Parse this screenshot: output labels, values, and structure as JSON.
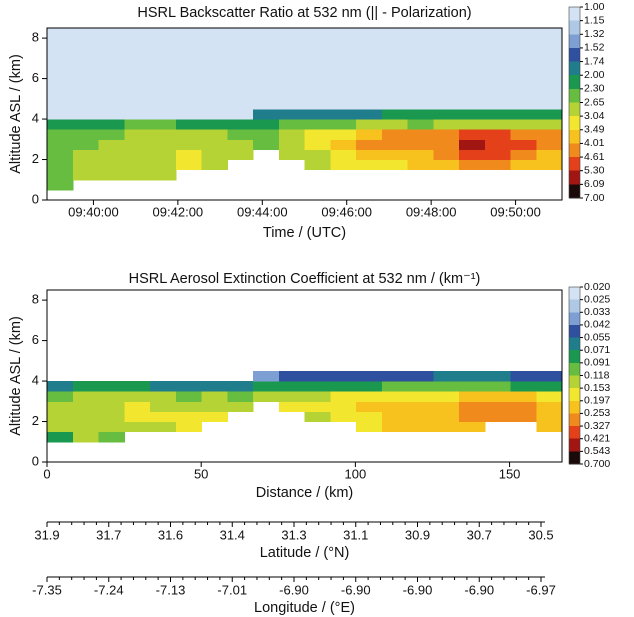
{
  "chart_data": [
    {
      "type": "heatmap",
      "title": "HSRL Backscatter Ratio at 532 nm (|| - Polarization)",
      "xlabel": "Time / (UTC)",
      "ylabel": "Altitude ASL / (km)",
      "xlim": [
        38.9,
        51.1
      ],
      "ylim": [
        0,
        8.5
      ],
      "xticks": [
        {
          "value": 40,
          "label": "09:40:00"
        },
        {
          "value": 42,
          "label": "09:42:00"
        },
        {
          "value": 44,
          "label": "09:44:00"
        },
        {
          "value": 46,
          "label": "09:46:00"
        },
        {
          "value": 48,
          "label": "09:48:00"
        },
        {
          "value": 50,
          "label": "09:50:00"
        }
      ],
      "yticks": [
        0,
        2,
        4,
        6,
        8
      ],
      "xbins": [
        38.9,
        39.51,
        40.12,
        40.73,
        41.34,
        41.95,
        42.56,
        43.17,
        43.78,
        44.39,
        45.0,
        45.61,
        46.22,
        46.83,
        47.44,
        48.05,
        48.66,
        49.27,
        49.88,
        50.49,
        51.1
      ],
      "ybins": [
        0,
        0.5,
        1,
        1.5,
        2,
        2.5,
        3,
        3.5,
        4,
        4.5,
        8.5
      ],
      "values": [
        [
          null,
          null,
          null,
          null,
          null,
          null,
          null,
          null,
          null,
          null,
          null,
          null,
          null,
          null,
          null,
          null,
          null,
          null,
          null,
          null
        ],
        [
          2.6,
          null,
          null,
          null,
          null,
          null,
          null,
          null,
          null,
          null,
          null,
          null,
          null,
          null,
          null,
          null,
          null,
          null,
          null,
          null
        ],
        [
          2.6,
          2.8,
          2.8,
          3.0,
          3.0,
          null,
          null,
          null,
          null,
          null,
          null,
          null,
          null,
          null,
          null,
          null,
          null,
          null,
          null,
          null
        ],
        [
          2.5,
          2.7,
          2.9,
          3.0,
          3.0,
          3.1,
          3.0,
          null,
          null,
          null,
          3.0,
          3.1,
          3.2,
          3.4,
          3.5,
          3.6,
          4.2,
          4.4,
          3.8,
          3.6
        ],
        [
          2.5,
          2.7,
          2.9,
          3.0,
          3.0,
          3.1,
          3.0,
          2.9,
          null,
          2.8,
          3.0,
          3.1,
          3.6,
          3.9,
          4.0,
          4.3,
          4.8,
          5.0,
          4.4,
          4.0
        ],
        [
          2.4,
          2.6,
          2.8,
          2.9,
          3.0,
          3.0,
          2.9,
          2.8,
          2.5,
          2.9,
          3.4,
          3.5,
          4.2,
          4.6,
          4.4,
          4.6,
          5.3,
          5.2,
          4.7,
          4.5
        ],
        [
          2.3,
          2.4,
          2.5,
          2.7,
          2.8,
          2.7,
          2.7,
          2.6,
          2.4,
          3.0,
          3.3,
          3.4,
          4.0,
          4.3,
          4.2,
          4.4,
          4.8,
          4.8,
          4.5,
          4.4
        ],
        [
          2.1,
          2.2,
          2.2,
          2.3,
          2.3,
          2.2,
          2.2,
          2.1,
          2.0,
          2.4,
          2.6,
          2.6,
          2.7,
          2.7,
          2.6,
          2.8,
          3.0,
          2.9,
          2.8,
          2.7
        ],
        [
          1.05,
          1.05,
          1.05,
          1.05,
          1.05,
          1.05,
          1.05,
          1.05,
          1.8,
          1.9,
          1.9,
          1.8,
          1.9,
          2.0,
          2.0,
          2.1,
          2.1,
          2.1,
          2.0,
          2.0
        ],
        [
          1.05,
          1.05,
          1.05,
          1.05,
          1.05,
          1.05,
          1.05,
          1.05,
          1.05,
          1.05,
          1.05,
          1.05,
          1.05,
          1.05,
          1.05,
          1.05,
          1.05,
          1.05,
          1.05,
          1.05
        ]
      ],
      "colorbar": {
        "ticks": [
          {
            "value": 1,
            "label": "1.00"
          },
          1.15,
          1.32,
          1.52,
          1.74,
          {
            "value": 2,
            "label": "2.00"
          },
          {
            "value": 2.3,
            "label": "2.30"
          },
          2.65,
          3.04,
          3.49,
          4.01,
          4.61,
          {
            "value": 5.3,
            "label": "5.30"
          },
          6.09,
          {
            "value": 7,
            "label": "7.00"
          }
        ],
        "colors": [
          "#d3e3f3",
          "#aec8e6",
          "#7d9fd3",
          "#2f4f9f",
          "#1f7d8c",
          "#1a9850",
          "#66bd3f",
          "#b5d335",
          "#f2e62e",
          "#f7c21e",
          "#f08a1c",
          "#e4411b",
          "#a11512",
          "#1a0a0a"
        ]
      }
    },
    {
      "type": "heatmap",
      "title": "HSRL Aerosol Extinction Coefficient at 532 nm / (km⁻¹)",
      "xlabel": "Distance / (km)",
      "ylabel": "Altitude ASL / (km)",
      "xlim": [
        0,
        167
      ],
      "ylim": [
        0,
        8.5
      ],
      "xticks": [
        0,
        50,
        100,
        150
      ],
      "yticks": [
        0,
        2,
        4,
        6,
        8
      ],
      "xbins": [
        0,
        8.35,
        16.7,
        25.05,
        33.4,
        41.75,
        50.1,
        58.45,
        66.8,
        75.15,
        83.5,
        91.85,
        100.2,
        108.55,
        116.9,
        125.25,
        133.6,
        141.95,
        150.3,
        158.65,
        167
      ],
      "ybins": [
        0,
        0.5,
        1,
        1.5,
        2,
        2.5,
        3,
        3.5,
        4,
        4.5,
        8.5
      ],
      "values": [
        [
          null,
          null,
          null,
          null,
          null,
          null,
          null,
          null,
          null,
          null,
          null,
          null,
          null,
          null,
          null,
          null,
          null,
          null,
          null,
          null
        ],
        [
          null,
          null,
          null,
          null,
          null,
          null,
          null,
          null,
          null,
          null,
          null,
          null,
          null,
          null,
          null,
          null,
          null,
          null,
          null,
          null
        ],
        [
          0.09,
          0.12,
          0.1,
          null,
          null,
          null,
          null,
          null,
          null,
          null,
          null,
          null,
          null,
          null,
          null,
          null,
          null,
          null,
          null,
          null
        ],
        [
          0.12,
          0.14,
          0.13,
          0.14,
          0.15,
          0.16,
          null,
          null,
          null,
          null,
          null,
          null,
          0.18,
          0.2,
          0.21,
          0.22,
          0.24,
          null,
          null,
          0.22
        ],
        [
          0.14,
          0.15,
          0.15,
          0.16,
          0.17,
          0.17,
          0.16,
          null,
          null,
          null,
          0.15,
          0.16,
          0.19,
          0.2,
          0.22,
          0.24,
          0.28,
          0.3,
          0.26,
          0.24
        ],
        [
          0.13,
          0.14,
          0.15,
          0.16,
          0.15,
          0.14,
          0.15,
          0.13,
          null,
          0.17,
          0.16,
          0.17,
          0.2,
          0.21,
          0.22,
          0.25,
          0.3,
          0.32,
          0.28,
          0.25
        ],
        [
          0.11,
          0.12,
          0.12,
          0.13,
          0.12,
          0.11,
          0.12,
          0.11,
          0.13,
          0.15,
          0.15,
          0.16,
          0.17,
          0.18,
          0.18,
          0.19,
          0.2,
          0.21,
          0.2,
          0.19
        ],
        [
          0.07,
          0.08,
          0.08,
          0.08,
          0.07,
          0.07,
          0.07,
          0.07,
          0.08,
          0.09,
          0.09,
          0.09,
          0.09,
          0.1,
          0.1,
          0.1,
          0.1,
          0.1,
          0.09,
          0.09
        ],
        [
          null,
          null,
          null,
          null,
          null,
          null,
          null,
          null,
          0.04,
          0.045,
          0.05,
          0.05,
          0.05,
          0.05,
          0.05,
          0.06,
          0.06,
          0.06,
          0.05,
          0.05
        ],
        [
          null,
          null,
          null,
          null,
          null,
          null,
          null,
          null,
          null,
          null,
          null,
          null,
          null,
          null,
          null,
          null,
          null,
          null,
          null,
          null
        ]
      ],
      "colorbar": {
        "ticks": [
          {
            "value": 0.02,
            "label": "0.020"
          },
          0.025,
          0.033,
          0.042,
          0.055,
          0.071,
          0.091,
          0.118,
          0.153,
          0.197,
          0.253,
          0.327,
          0.421,
          0.543,
          {
            "value": 0.7,
            "label": "0.700"
          }
        ],
        "colors": [
          "#d3e3f3",
          "#aec8e6",
          "#7d9fd3",
          "#2f4f9f",
          "#1f7d8c",
          "#1a9850",
          "#66bd3f",
          "#b5d335",
          "#f2e62e",
          "#f7c21e",
          "#f08a1c",
          "#e4411b",
          "#a11512",
          "#1a0a0a"
        ]
      }
    },
    {
      "type": "axis",
      "xlabel": "Latitude / (°N)",
      "ticks": [
        31.9,
        31.7,
        31.6,
        31.4,
        31.3,
        31.1,
        30.9,
        30.7,
        30.5
      ]
    },
    {
      "type": "axis",
      "xlabel": "Longitude / (°E)",
      "ticks": [
        -7.35,
        -7.24,
        -7.13,
        -7.01,
        {
          "value": -6.9,
          "label": "-6.90"
        },
        {
          "value": -6.9,
          "label": "-6.90"
        },
        {
          "value": -6.9,
          "label": "-6.90"
        },
        {
          "value": -6.9,
          "label": "-6.90"
        },
        -6.97
      ]
    }
  ]
}
